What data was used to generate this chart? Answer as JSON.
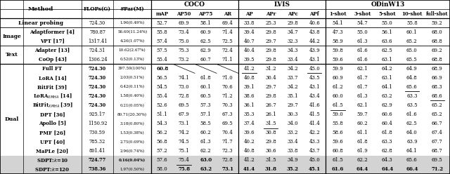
{
  "rows": [
    {
      "group": "",
      "method": "Linear probing",
      "span_group": true,
      "flops": "724.30",
      "par": "1.96(0.49%)",
      "flops_bold": false,
      "par_bold": false,
      "vals": [
        "52.7",
        "69.9",
        "58.1",
        "69.4",
        "33.8",
        "25.3",
        "29.8",
        "40.6",
        "54.1",
        "54.7",
        "55.0",
        "55.8",
        "59.2"
      ],
      "bold": [],
      "underline": [],
      "highlight": false
    },
    {
      "group": "Image",
      "method": "Adaptformer [4]",
      "span_group": false,
      "flops": "780.87",
      "par": "56.60(11.24%)",
      "flops_bold": false,
      "par_bold": false,
      "vals": [
        "55.8",
        "73.4",
        "60.9",
        "71.4",
        "39.4",
        "29.8",
        "34.7",
        "43.8",
        "47.3",
        "55.0",
        "56.1",
        "60.1",
        "68.0"
      ],
      "bold": [],
      "underline": [],
      "highlight": false
    },
    {
      "group": "Image",
      "method": "VPT [17]",
      "span_group": false,
      "flops": "1317.41",
      "par": "4.26(1.07%)",
      "flops_bold": false,
      "par_bold": false,
      "vals": [
        "57.4",
        "75.0",
        "62.5",
        "72.5",
        "40.7",
        "29.7",
        "32.3",
        "44.2",
        "58.9",
        "61.3",
        "63.6",
        "65.2",
        "68.8"
      ],
      "bold": [],
      "underline": [],
      "highlight": false
    },
    {
      "group": "Text",
      "method": "Adapter [13]",
      "span_group": false,
      "flops": "724.31",
      "par": "10.62(2.67%)",
      "flops_bold": false,
      "par_bold": false,
      "vals": [
        "57.5",
        "75.3",
        "62.9",
        "72.4",
        "40.4",
        "29.8",
        "34.3",
        "43.9",
        "59.8",
        "61.6",
        "62.5",
        "65.0",
        "69.2"
      ],
      "bold": [],
      "underline": [],
      "highlight": false
    },
    {
      "group": "Text",
      "method": "CoOp [43]",
      "span_group": false,
      "flops": "1306.24",
      "par": "0.52(0.13%)",
      "flops_bold": false,
      "par_bold": false,
      "vals": [
        "55.4",
        "73.2",
        "60.7",
        "71.1",
        "39.5",
        "29.8",
        "33.4",
        "43.1",
        "59.6",
        "61.6",
        "63.1",
        "65.5",
        "68.8"
      ],
      "bold": [],
      "underline": [],
      "highlight": false
    },
    {
      "group": "Dual",
      "method": "Full FT",
      "span_group": false,
      "flops": "724.30",
      "par": "397.59(100%)",
      "flops_bold": false,
      "par_bold": false,
      "vals": [
        "60.8",
        "",
        "",
        "",
        "41.2",
        "31.2",
        "34.2",
        "45.0",
        "59.9",
        "62.1",
        "64.2",
        "64.9",
        "68.9"
      ],
      "bold": [
        0
      ],
      "underline": [
        4,
        7
      ],
      "highlight": false
    },
    {
      "group": "Dual",
      "method": "LoRA [14]",
      "span_group": false,
      "flops": "724.30",
      "par": "2.03(0.51%)",
      "flops_bold": false,
      "par_bold": false,
      "vals": [
        "56.5",
        "74.1",
        "61.8",
        "71.0",
        "40.8",
        "30.4",
        "33.7",
        "43.5",
        "60.9",
        "61.7",
        "63.1",
        "64.8",
        "66.9"
      ],
      "bold": [],
      "underline": [],
      "highlight": false
    },
    {
      "group": "Dual",
      "method": "BitFit [39]",
      "span_group": false,
      "flops": "724.30",
      "par": "0.42(0.11%)",
      "flops_bold": false,
      "par_bold": false,
      "vals": [
        "54.5",
        "73.0",
        "60.1",
        "70.6",
        "39.1",
        "29.7",
        "34.2",
        "43.1",
        "61.2",
        "61.7",
        "64.1",
        "65.6",
        "68.3"
      ],
      "bold": [],
      "underline": [
        11
      ],
      "highlight": false
    },
    {
      "group": "Dual",
      "method": "LoRA XMHA [14]",
      "span_group": false,
      "flops": "724.30",
      "par": "1.58(0.40%)",
      "flops_bold": false,
      "par_bold": false,
      "vals": [
        "55.4",
        "72.8",
        "60.5",
        "71.2",
        "38.6",
        "29.8",
        "35.1",
        "43.4",
        "60.0",
        "61.3",
        "63.2",
        "63.3",
        "68.6"
      ],
      "bold": [],
      "underline": [
        12
      ],
      "highlight": false
    },
    {
      "group": "Dual",
      "method": "BitFit XMHA [39]",
      "span_group": false,
      "flops": "724.30",
      "par": "0.21(0.05%)",
      "flops_bold": false,
      "par_bold": false,
      "vals": [
        "52.6",
        "69.5",
        "57.3",
        "70.3",
        "36.1",
        "26.7",
        "29.7",
        "41.6",
        "61.5",
        "62.1",
        "62.9",
        "63.5",
        "65.2"
      ],
      "bold": [],
      "underline": [
        8
      ],
      "highlight": false
    },
    {
      "group": "Dual",
      "method": "DPT [36]",
      "span_group": false,
      "flops": "925.17",
      "par": "80.71(20.30%)",
      "flops_bold": false,
      "par_bold": false,
      "vals": [
        "51.1",
        "67.9",
        "57.1",
        "67.3",
        "35.3",
        "26.1",
        "30.3",
        "41.5",
        "59.0",
        "59.7",
        "60.6",
        "61.6",
        "65.2"
      ],
      "bold": [],
      "underline": [],
      "highlight": false
    },
    {
      "group": "Dual",
      "method": "Apollo [5]",
      "span_group": false,
      "flops": "1150.92",
      "par": "3.18(0.80%)",
      "flops_bold": false,
      "par_bold": false,
      "vals": [
        "54.3",
        "73.1",
        "58.5",
        "69.5",
        "37.4",
        "31.5",
        "34.0",
        "41.4",
        "55.8",
        "60.2",
        "60.4",
        "62.5",
        "66.7"
      ],
      "bold": [],
      "underline": [
        5
      ],
      "highlight": false
    },
    {
      "group": "Dual",
      "method": "PMF [26]",
      "span_group": false,
      "flops": "730.59",
      "par": "1.53(0.38%)",
      "flops_bold": false,
      "par_bold": false,
      "vals": [
        "56.2",
        "74.2",
        "60.2",
        "70.4",
        "39.6",
        "30.8",
        "33.2",
        "42.2",
        "58.6",
        "61.1",
        "61.8",
        "64.0",
        "67.4"
      ],
      "bold": [],
      "underline": [],
      "highlight": false
    },
    {
      "group": "Dual",
      "method": "UPT [40]",
      "span_group": false,
      "flops": "785.32",
      "par": "2.75(0.69%)",
      "flops_bold": false,
      "par_bold": false,
      "vals": [
        "56.8",
        "74.5",
        "61.3",
        "71.7",
        "40.2",
        "29.8",
        "33.4",
        "43.3",
        "59.6",
        "61.8",
        "63.3",
        "63.9",
        "67.7"
      ],
      "bold": [],
      "underline": [],
      "highlight": false
    },
    {
      "group": "Dual",
      "method": "MaPLe [20]",
      "span_group": false,
      "flops": "801.41",
      "par": "2.96(0.74%)",
      "flops_bold": false,
      "par_bold": false,
      "vals": [
        "57.2",
        "75.1",
        "62.2",
        "72.3",
        "40.8",
        "30.6",
        "33.8",
        "43.7",
        "60.8",
        "61.9",
        "62.8",
        "64.1",
        "68.7"
      ],
      "bold": [],
      "underline": [],
      "highlight": false
    },
    {
      "group": "Dual",
      "method": "SDPT:k=10",
      "span_group": false,
      "flops": "724.77",
      "par": "0.16(0.04%)",
      "flops_bold": false,
      "par_bold": true,
      "vals": [
        "57.6",
        "75.4",
        "63.0",
        "72.8",
        "41.2",
        "31.5",
        "34.9",
        "45.0",
        "61.5",
        "62.2",
        "64.3",
        "65.6",
        "69.5"
      ],
      "bold": [
        2
      ],
      "underline": [
        1
      ],
      "highlight": true
    },
    {
      "group": "Dual",
      "method": "SDPT:k=120",
      "span_group": false,
      "flops": "738.36",
      "par": "1.97(0.50%)",
      "flops_bold": false,
      "par_bold": false,
      "vals": [
        "58.0",
        "75.8",
        "63.2",
        "73.1",
        "41.4",
        "31.8",
        "35.2",
        "45.1",
        "61.6",
        "64.4",
        "64.4",
        "66.4",
        "71.2"
      ],
      "bold": [
        1,
        2,
        3,
        4,
        5,
        6,
        7,
        8,
        9,
        10,
        11,
        12
      ],
      "underline": [],
      "highlight": true
    }
  ],
  "group_spans": {
    "Image": [
      1,
      2
    ],
    "Text": [
      3,
      4
    ],
    "Dual": [
      5,
      16
    ]
  },
  "header2": [
    "mAP",
    "AP50",
    "AP75",
    "AR",
    "AP",
    "APr",
    "APc",
    "APf",
    "1-shot",
    "3-shot",
    "5-shot",
    "10-shot",
    "full-shot"
  ],
  "highlight_color": "#d3d3d3",
  "flops_bold_methods": [
    "Full FT",
    "LoRA [14]",
    "BitFit [39]",
    "LoRA XMHA [14]",
    "BitFit XMHA [39]",
    "SDPT:k=10",
    "SDPT:k=120"
  ]
}
